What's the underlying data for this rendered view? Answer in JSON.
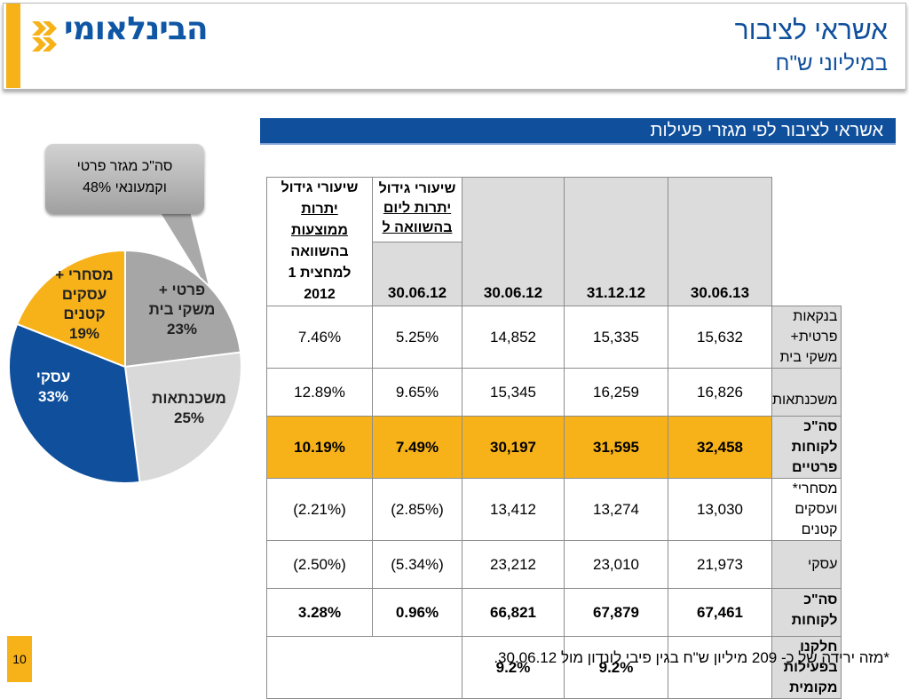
{
  "logo": {
    "text": "הבינלאומי"
  },
  "title": {
    "main": "אשראי לציבור",
    "sub": "במיליוני ש\"ח"
  },
  "section": {
    "title": "אשראי לציבור לפי מגזרי פעילות"
  },
  "callout": {
    "line1": "סה\"כ מגזר פרטי",
    "line2": "וקמעונאי 48%"
  },
  "colors": {
    "blue": "#0f4f9c",
    "gold": "#f7b21a",
    "gray": "#a6a6a6",
    "lightgray": "#d9d9d9"
  },
  "chart_data": {
    "type": "pie",
    "slices": [
      {
        "label_lines": [
          "פרטי +",
          "משקי בית",
          "23%"
        ],
        "value": 23,
        "color": "#a6a6a6"
      },
      {
        "label_lines": [
          "משכנתאות",
          "25%"
        ],
        "value": 25,
        "color": "#d9d9d9"
      },
      {
        "label_lines": [
          "עסקי",
          "33%"
        ],
        "value": 33,
        "color": "#0f4f9c"
      },
      {
        "label_lines": [
          "מסחרי +",
          "עסקים",
          "קטנים",
          "19%"
        ],
        "value": 19,
        "color": "#f7b21a"
      }
    ]
  },
  "table": {
    "headers": {
      "d1": "30.06.13",
      "d2": "31.12.12",
      "d3": "30.06.12",
      "g1_line1": "שיעורי גידול",
      "g1_line2": "יתרות ליום",
      "g1_line3": "בהשוואה ל",
      "g1_date": "30.06.12",
      "g2_line1": "שיעורי גידול",
      "g2_line2": "יתרות",
      "g2_line3": "ממוצעות",
      "g2_line4": "בהשוואה",
      "g2_line5": "למחצית 1",
      "g2_line6": "2012"
    },
    "rows": [
      {
        "label": "בנקאות פרטית+ משקי בית",
        "v1": "15,632",
        "v2": "15,335",
        "v3": "14,852",
        "g1": "5.25%",
        "g2": "7.46%"
      },
      {
        "label": "משכנתאות",
        "v1": "16,826",
        "v2": "16,259",
        "v3": "15,345",
        "g1": "9.65%",
        "g2": "12.89%"
      },
      {
        "label": "סה\"כ לקוחות פרטיים",
        "v1": "32,458",
        "v2": "31,595",
        "v3": "30,197",
        "g1": "7.49%",
        "g2": "10.19%"
      },
      {
        "label": "מסחרי* ועסקים קטנים",
        "v1": "13,030",
        "v2": "13,274",
        "v3": "13,412",
        "g1": "(2.85%)",
        "g2": "(2.21%)"
      },
      {
        "label": "עסקי",
        "v1": "21,973",
        "v2": "23,010",
        "v3": "23,212",
        "g1": "(5.34%)",
        "g2": "(2.50%)"
      },
      {
        "label": "סה\"כ לקוחות",
        "v1": "67,461",
        "v2": "67,879",
        "v3": "66,821",
        "g1": "0.96%",
        "g2": "3.28%"
      },
      {
        "label": "חלקנו בפעילות מקומית",
        "v1": "",
        "v2": "9.2%",
        "v3": "9.2%",
        "g1": "",
        "g2": ""
      }
    ]
  },
  "footnote": "*מזה ירידה של כ- 209 מיליון ש\"ח בגין פיבי לונדון מול 30.06.12.",
  "page_number": "10"
}
